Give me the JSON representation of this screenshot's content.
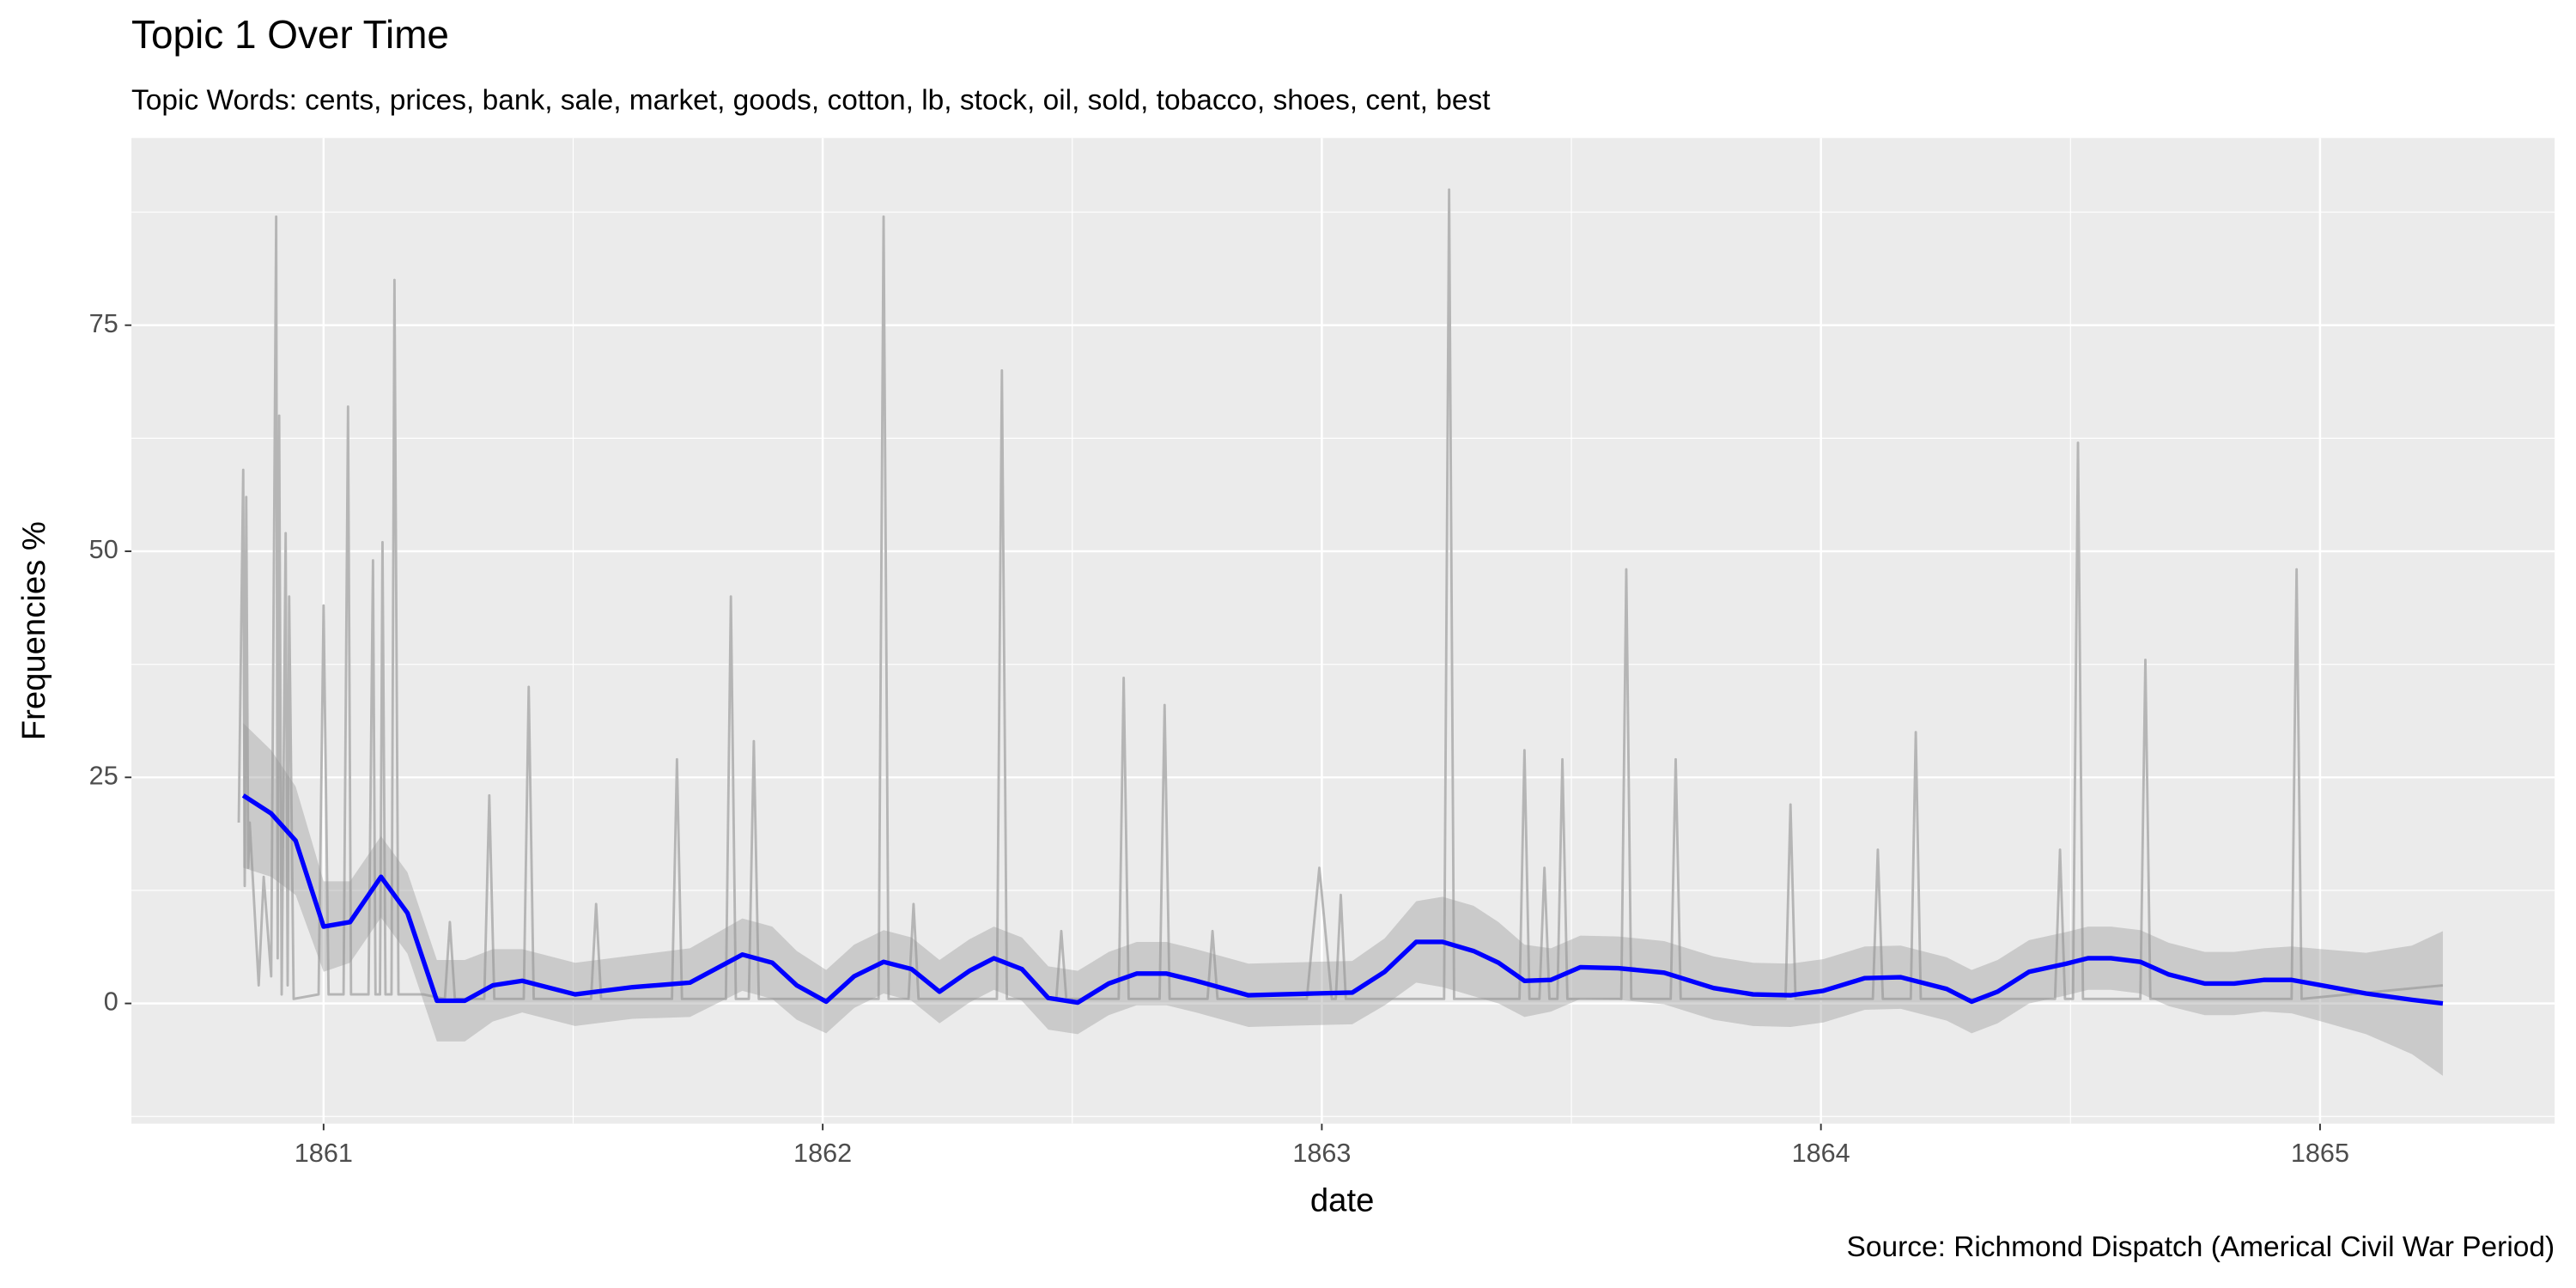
{
  "chart_data": {
    "type": "line",
    "title": "Topic 1 Over Time",
    "subtitle": "Topic Words: cents, prices, bank, sale, market, goods, cotton, lb, stock, oil, sold, tobacco, shoes, cent, best",
    "x_label": "date",
    "y_label": "Frequencies %",
    "caption": "Source: Richmond Dispatch (Americal Civil War Period)",
    "xlim": [
      1860.615,
      1865.47
    ],
    "ylim": [
      -13.3,
      95.7
    ],
    "xticks": [
      1861,
      1862,
      1863,
      1864,
      1865
    ],
    "yticks": [
      0,
      25,
      50,
      75
    ],
    "x_minor_ticks": [
      1861.5,
      1862.5,
      1863.5,
      1864.5
    ],
    "y_minor_ticks": [
      -12.5,
      12.5,
      37.5,
      62.5,
      87.5
    ],
    "grid": true,
    "background": "#ebebeb",
    "series": [
      {
        "color": "#b5b5b5",
        "x": [
          1860.83,
          1860.839,
          1860.842,
          1860.845,
          1860.849,
          1860.852,
          1860.87,
          1860.88,
          1860.895,
          1860.905,
          1860.908,
          1860.911,
          1860.916,
          1860.924,
          1860.928,
          1860.931,
          1860.94,
          1860.99,
          1861.0,
          1861.01,
          1861.04,
          1861.049,
          1861.055,
          1861.09,
          1861.099,
          1861.104,
          1861.113,
          1861.118,
          1861.124,
          1861.136,
          1861.142,
          1861.15,
          1861.2,
          1861.243,
          1861.253,
          1861.263,
          1861.322,
          1861.332,
          1861.342,
          1861.401,
          1861.411,
          1861.421,
          1861.536,
          1861.546,
          1861.556,
          1861.698,
          1861.708,
          1861.718,
          1861.806,
          1861.816,
          1861.826,
          1861.852,
          1861.862,
          1861.872,
          1862.112,
          1862.122,
          1862.132,
          1862.172,
          1862.182,
          1862.192,
          1862.349,
          1862.359,
          1862.369,
          1862.468,
          1862.478,
          1862.488,
          1862.593,
          1862.603,
          1862.613,
          1862.675,
          1862.685,
          1862.695,
          1862.771,
          1862.781,
          1862.791,
          1862.97,
          1862.995,
          1863.02,
          1863.028,
          1863.038,
          1863.048,
          1863.245,
          1863.255,
          1863.265,
          1863.396,
          1863.406,
          1863.416,
          1863.436,
          1863.446,
          1863.456,
          1863.472,
          1863.482,
          1863.492,
          1863.6,
          1863.61,
          1863.62,
          1863.699,
          1863.709,
          1863.719,
          1863.929,
          1863.939,
          1863.949,
          1864.104,
          1864.114,
          1864.124,
          1864.18,
          1864.19,
          1864.2,
          1864.469,
          1864.479,
          1864.489,
          1864.505,
          1864.515,
          1864.525,
          1864.64,
          1864.65,
          1864.66,
          1864.943,
          1864.953,
          1864.963,
          1865.246
        ],
        "values": [
          20,
          59,
          13,
          56,
          15,
          20,
          2,
          14,
          3,
          87,
          5,
          65,
          1,
          52,
          2,
          45,
          0.5,
          1,
          44,
          1,
          1,
          66,
          1,
          1,
          49,
          1,
          1,
          51,
          1,
          1,
          80,
          1,
          1,
          0.5,
          9,
          0.5,
          0.5,
          23,
          0.5,
          0.5,
          35,
          0.5,
          0.5,
          11,
          0.5,
          0.5,
          27,
          0.5,
          0.5,
          45,
          0.5,
          0.5,
          29,
          0.5,
          0.5,
          87,
          0.5,
          0.5,
          11,
          0.5,
          0.5,
          70,
          0.5,
          0.5,
          8,
          0.5,
          0.5,
          36,
          0.5,
          0.5,
          33,
          0.5,
          0.5,
          8,
          0.5,
          0.5,
          15,
          0.5,
          0.5,
          12,
          0.5,
          0.5,
          90,
          0.5,
          0.5,
          28,
          0.5,
          0.5,
          15,
          0.5,
          0.5,
          27,
          0.5,
          0.5,
          48,
          0.5,
          0.5,
          27,
          0.5,
          0.5,
          22,
          0.5,
          0.5,
          17,
          0.5,
          0.5,
          30,
          0.5,
          0.5,
          17,
          0.5,
          0.5,
          62,
          0.5,
          0.5,
          38,
          0.5,
          0.5,
          48,
          0.5,
          2
        ]
      },
      {
        "color": "#0000ff",
        "ribbon_color": "#999999",
        "x": [
          1860.839,
          1860.895,
          1860.944,
          1861.0,
          1861.053,
          1861.115,
          1861.168,
          1861.227,
          1861.283,
          1861.339,
          1861.398,
          1861.504,
          1861.619,
          1861.734,
          1861.839,
          1861.899,
          1861.948,
          1862.007,
          1862.063,
          1862.122,
          1862.178,
          1862.234,
          1862.294,
          1862.343,
          1862.399,
          1862.452,
          1862.511,
          1862.573,
          1862.629,
          1862.689,
          1862.748,
          1862.853,
          1862.985,
          1863.061,
          1863.126,
          1863.189,
          1863.242,
          1863.304,
          1863.354,
          1863.406,
          1863.459,
          1863.518,
          1863.594,
          1863.686,
          1863.785,
          1863.864,
          1863.939,
          1864.005,
          1864.088,
          1864.16,
          1864.252,
          1864.302,
          1864.354,
          1864.417,
          1864.492,
          1864.535,
          1864.581,
          1864.64,
          1864.697,
          1864.769,
          1864.828,
          1864.887,
          1864.943,
          1865.003,
          1865.092,
          1865.184,
          1865.246
        ],
        "values": [
          23,
          21,
          18,
          8.5,
          9,
          14,
          10,
          0.3,
          0.3,
          2,
          2.5,
          1,
          1.8,
          2.3,
          5.4,
          4.5,
          2,
          0.2,
          3,
          4.6,
          3.8,
          1.3,
          3.6,
          5,
          3.8,
          0.6,
          0.1,
          2.2,
          3.3,
          3.3,
          2.5,
          0.9,
          1.1,
          1.2,
          3.5,
          6.8,
          6.8,
          5.8,
          4.5,
          2.5,
          2.6,
          4,
          3.9,
          3.4,
          1.7,
          1,
          0.9,
          1.4,
          2.8,
          2.9,
          1.6,
          0.2,
          1.3,
          3.5,
          4.4,
          5,
          5,
          4.6,
          3.2,
          2.2,
          2.2,
          2.6,
          2.6,
          2,
          1.1,
          0.4,
          0
        ],
        "lower": [
          15,
          14,
          12,
          3.5,
          4.5,
          9.5,
          5.5,
          -4.2,
          -4.2,
          -2,
          -1,
          -2.5,
          -1.7,
          -1.5,
          1.4,
          0.5,
          -1.8,
          -3.3,
          -0.5,
          1.1,
          0.3,
          -2.2,
          0.1,
          1.5,
          0.3,
          -2.9,
          -3.4,
          -1.3,
          -0.2,
          -0.2,
          -1,
          -2.6,
          -2.4,
          -2.3,
          -0.2,
          2.3,
          1.8,
          0.8,
          0,
          -1.5,
          -0.9,
          0.5,
          0.4,
          -0.1,
          -1.8,
          -2.5,
          -2.6,
          -2.1,
          -0.7,
          -0.6,
          -1.9,
          -3.3,
          -2.2,
          0,
          0.9,
          1.5,
          1.5,
          1.1,
          -0.3,
          -1.3,
          -1.3,
          -0.9,
          -1.1,
          -2,
          -3.4,
          -5.6,
          -8
        ],
        "upper": [
          31,
          28,
          24,
          13.5,
          13.5,
          18.5,
          14.5,
          4.8,
          4.8,
          6,
          6,
          4.5,
          5.3,
          6.1,
          9.4,
          8.5,
          5.8,
          3.7,
          6.5,
          8.1,
          7.3,
          4.8,
          7.1,
          8.5,
          7.3,
          4.1,
          3.6,
          5.7,
          6.8,
          6.8,
          6,
          4.4,
          4.6,
          4.7,
          7.2,
          11.3,
          11.8,
          10.8,
          9,
          6.5,
          6.1,
          7.5,
          7.4,
          6.9,
          5.2,
          4.5,
          4.4,
          4.9,
          6.3,
          6.4,
          5.1,
          3.7,
          4.8,
          7,
          7.9,
          8.5,
          8.5,
          8.1,
          6.7,
          5.7,
          5.7,
          6.1,
          6.3,
          6,
          5.6,
          6.4,
          8
        ]
      }
    ]
  }
}
